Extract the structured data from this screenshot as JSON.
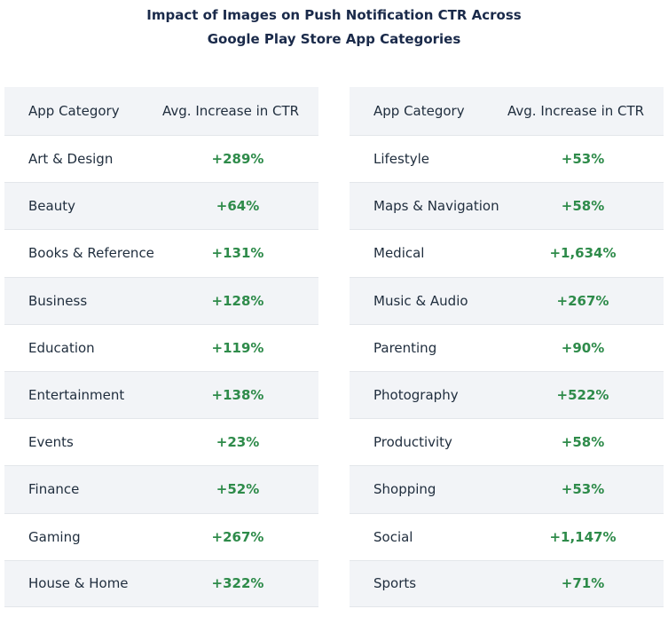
{
  "title_line1": "Impact of Images on Push Notification CTR Across",
  "title_line2": "Google Play Store App Categories",
  "chart_data": {
    "type": "table",
    "columns": [
      "App Category",
      "Avg. Increase in CTR"
    ],
    "colors": {
      "value": "#2e8b4a",
      "header_bg": "#f2f4f7",
      "title": "#1a2a4a"
    },
    "left_table": [
      {
        "category": "Art & Design",
        "value": "+289%"
      },
      {
        "category": "Beauty",
        "value": "+64%"
      },
      {
        "category": "Books & Reference",
        "value": "+131%"
      },
      {
        "category": "Business",
        "value": "+128%"
      },
      {
        "category": "Education",
        "value": "+119%"
      },
      {
        "category": "Entertainment",
        "value": "+138%"
      },
      {
        "category": "Events",
        "value": "+23%"
      },
      {
        "category": "Finance",
        "value": "+52%"
      },
      {
        "category": "Gaming",
        "value": "+267%"
      },
      {
        "category": "House & Home",
        "value": "+322%"
      }
    ],
    "right_table": [
      {
        "category": "Lifestyle",
        "value": "+53%"
      },
      {
        "category": "Maps & Navigation",
        "value": "+58%"
      },
      {
        "category": "Medical",
        "value": "+1,634%"
      },
      {
        "category": "Music & Audio",
        "value": "+267%"
      },
      {
        "category": "Parenting",
        "value": "+90%"
      },
      {
        "category": "Photography",
        "value": "+522%"
      },
      {
        "category": "Productivity",
        "value": "+58%"
      },
      {
        "category": "Shopping",
        "value": "+53%"
      },
      {
        "category": "Social",
        "value": "+1,147%"
      },
      {
        "category": "Sports",
        "value": "+71%"
      }
    ]
  }
}
